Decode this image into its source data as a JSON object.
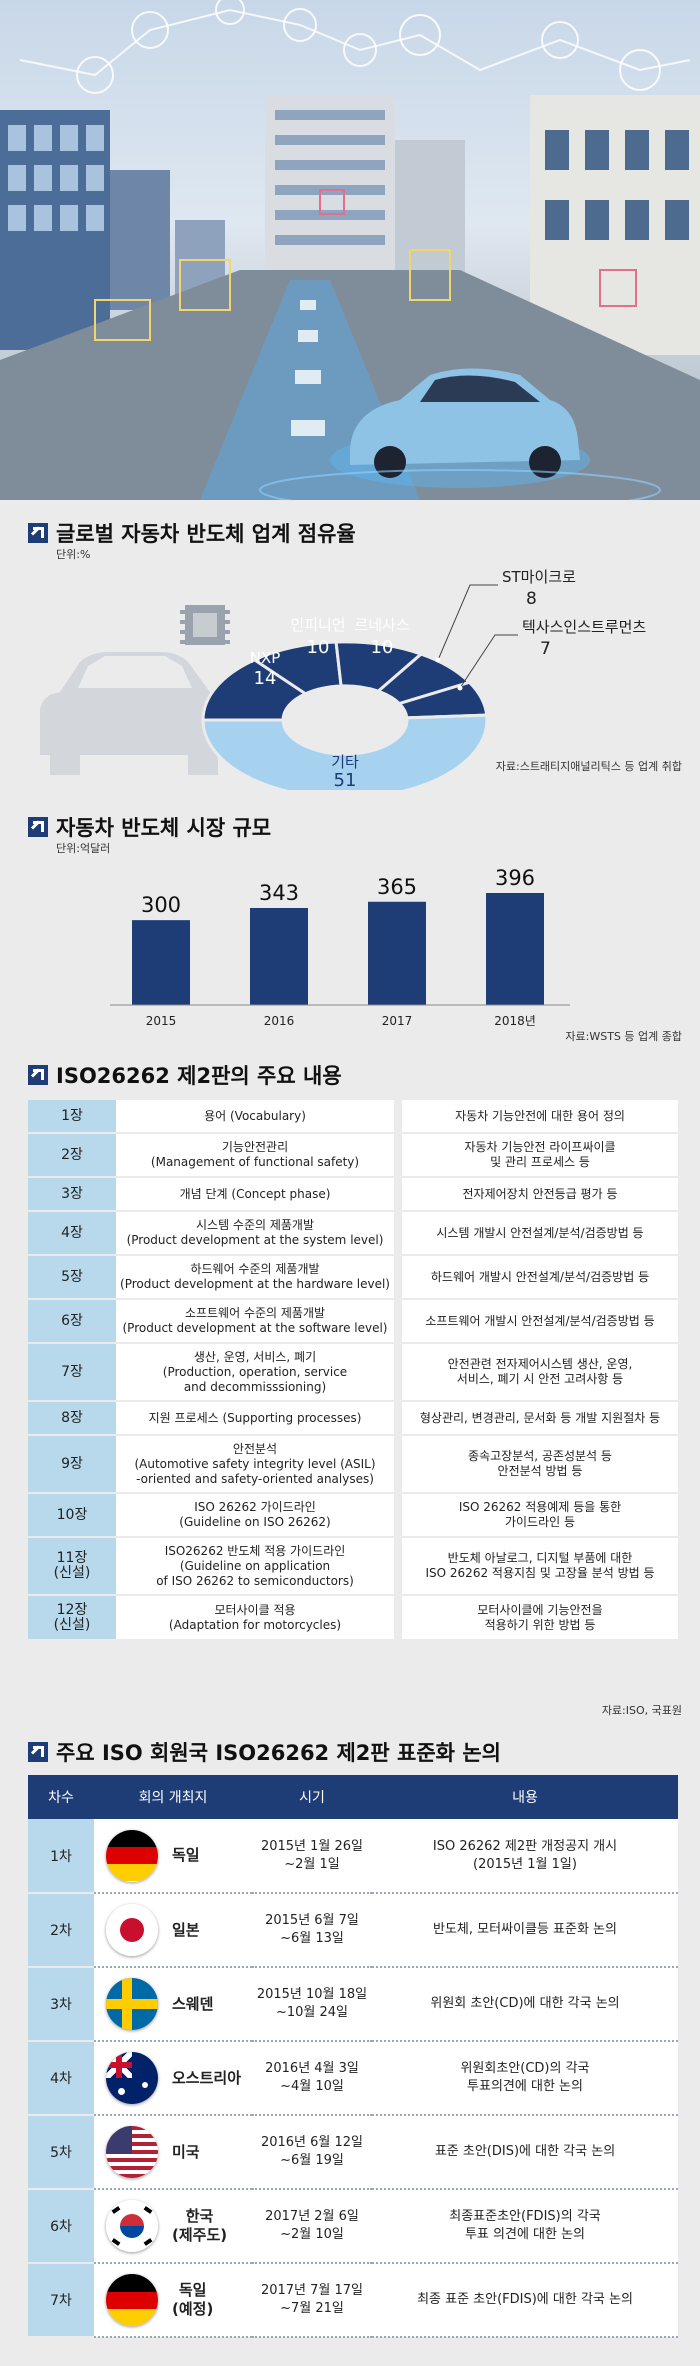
{
  "share": {
    "title": "글로벌 자동차 반도체 업계 점유율",
    "unit": "단위:%",
    "source": "자료:스트래티지애널리틱스 등 업계 취합"
  },
  "market": {
    "title": "자동차 반도체 시장 규모",
    "unit": "단위:억달러",
    "source": "자료:WSTS 등 업계 종합"
  },
  "iso": {
    "title": "ISO26262 제2판의 주요 내용",
    "source": "자료:ISO, 국표원",
    "rows": [
      {
        "chapter": "1장",
        "name": "용어 (Vocabulary)",
        "desc": "자동차 기능안전에 대한 용어 정의"
      },
      {
        "chapter": "2장",
        "name": "기능안전관리\n(Management of functional safety)",
        "desc": "자동차 기능안전 라이프싸이클\n및 관리 프로세스 등"
      },
      {
        "chapter": "3장",
        "name": "개념 단계 (Concept phase)",
        "desc": "전자제어장치 안전등급 평가 등"
      },
      {
        "chapter": "4장",
        "name": "시스템 수준의 제품개발\n(Product development at the system level)",
        "desc": "시스템 개발시 안전설계/분석/검증방법 등"
      },
      {
        "chapter": "5장",
        "name": "하드웨어 수준의 제품개발\n(Product development at the hardware level)",
        "desc": "하드웨어 개발시 안전설계/분석/검증방법 등"
      },
      {
        "chapter": "6장",
        "name": "소프트웨어 수준의 제품개발\n(Product development at the software level)",
        "desc": "소프트웨어 개발시 안전설계/분석/검증방법 등"
      },
      {
        "chapter": "7장",
        "name": "생산, 운영, 서비스, 폐기\n(Production, operation, service\nand decommisssioning)",
        "desc": "안전관련 전자제어시스템 생산, 운영,\n서비스, 폐기 시 안전 고려사항 등"
      },
      {
        "chapter": "8장",
        "name": "지원 프로세스 (Supporting processes)",
        "desc": "형상관리, 변경관리, 문서화 등 개발 지원절차 등"
      },
      {
        "chapter": "9장",
        "name": "안전분석\n(Automotive safety integrity level (ASIL)\n-oriented and safety-oriented analyses)",
        "desc": "종속고장분석, 공존성분석 등\n안전분석 방법 등"
      },
      {
        "chapter": "10장",
        "name": "ISO 26262 가이드라인\n(Guideline on ISO 26262)",
        "desc": "ISO 26262 적용예제 등을 통한\n가이드라인 등"
      },
      {
        "chapter": "11장\n(신설)",
        "name": "ISO26262 반도체 적용 가이드라인\n(Guideline on application\nof ISO 26262 to semiconductors)",
        "desc": "반도체 아날로그, 디지털 부품에 대한\nISO 26262 적용지침 및 고장율 분석 방법 등"
      },
      {
        "chapter": "12장\n(신설)",
        "name": "모터사이클 적용\n(Adaptation for motorcycles)",
        "desc": "모터사이클에 기능안전을\n적용하기 위한 방법 등"
      }
    ]
  },
  "discussion": {
    "title": "주요 ISO 회원국 ISO26262 제2판 표준화 논의",
    "headers": [
      "차수",
      "회의 개최지",
      "시기",
      "내용"
    ],
    "rows": [
      {
        "round": "1차",
        "place": "독일",
        "flag": "germany-flag-icon",
        "period": "2015년 1월 26일\n~2월 1일",
        "content": "ISO 26262 제2판 개정공지 개시\n(2015년 1월 1일)"
      },
      {
        "round": "2차",
        "place": "일본",
        "flag": "japan-flag-icon",
        "period": "2015년 6월 7일\n~6월 13일",
        "content": "반도체, 모터싸이클등 표준화 논의"
      },
      {
        "round": "3차",
        "place": "스웨덴",
        "flag": "sweden-flag-icon",
        "period": "2015년 10월 18일\n~10월 24일",
        "content": "위원회 초안(CD)에 대한 각국 논의"
      },
      {
        "round": "4차",
        "place": "오스트리아",
        "flag": "australia-flag-icon",
        "period": "2016년 4월 3일\n~4월 10일",
        "content": "위원회초안(CD)의 각국\n투표의견에 대한 논의"
      },
      {
        "round": "5차",
        "place": "미국",
        "flag": "usa-flag-icon",
        "period": "2016년 6월 12일\n~6월 19일",
        "content": "표준 초안(DIS)에 대한 각국 논의"
      },
      {
        "round": "6차",
        "place": "한국\n(제주도)",
        "flag": "korea-flag-icon",
        "period": "2017년 2월 6일\n~2월 10일",
        "content": "최종표준초안(FDIS)의 각국\n투표 의견에 대한 논의"
      },
      {
        "round": "7차",
        "place": "독일\n(예정)",
        "flag": "germany-flag-icon",
        "period": "2017년 7월 17일\n~7월 21일",
        "content": "최종 표준 초안(FDIS)에 대한 각국 논의"
      }
    ]
  },
  "chart_data": [
    {
      "type": "pie",
      "title": "글로벌 자동차 반도체 업계 점유율",
      "unit": "단위:%",
      "labels": [
        "NXP",
        "인피니언",
        "르네사스",
        "ST마이크로",
        "텍사스인스트루먼츠",
        "기타"
      ],
      "values": [
        14,
        10,
        10,
        8,
        7,
        51
      ]
    },
    {
      "type": "bar",
      "title": "자동차 반도체 시장 규모",
      "ylabel": "단위:억달러",
      "categories": [
        "2015",
        "2016",
        "2017",
        "2018년"
      ],
      "values": [
        300,
        343,
        365,
        396
      ],
      "ylim": [
        0,
        396
      ]
    }
  ]
}
